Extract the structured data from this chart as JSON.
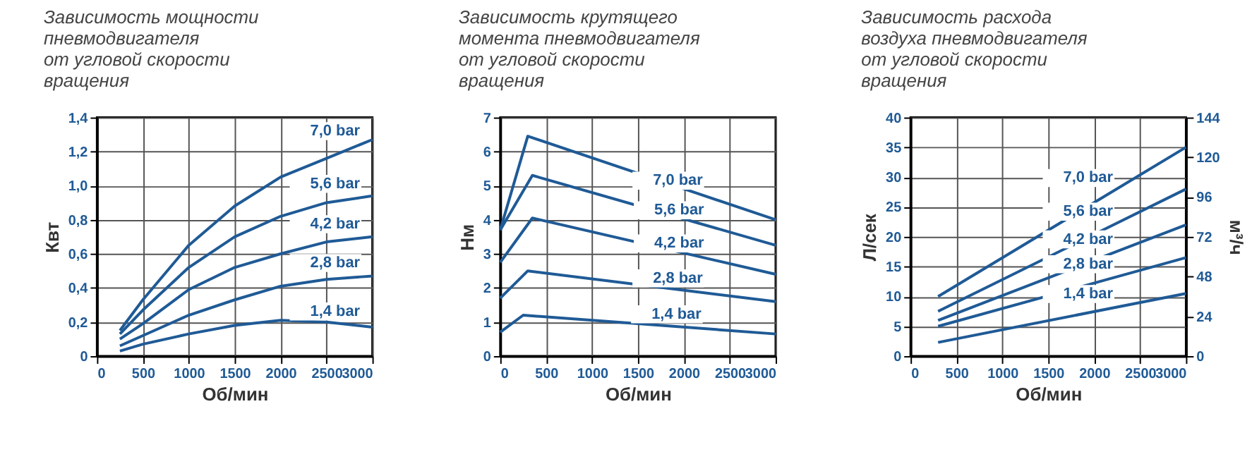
{
  "chart_data": [
    {
      "type": "line",
      "title": "Зависимость  мощности\nпневмодвигателя\nот  угловой  скорости\nвращения",
      "xlabel": "Об/мин",
      "ylabel": "Квт",
      "xlim": [
        0,
        3000
      ],
      "xticks": [
        0,
        500,
        1000,
        1500,
        2000,
        2500,
        3000
      ],
      "ylim": [
        0,
        1.4
      ],
      "yticks": [
        0,
        {
          "value": 0.2,
          "label": "0,2"
        },
        {
          "value": 0.4,
          "label": "0,4"
        },
        {
          "value": 0.6,
          "label": "0,6"
        },
        {
          "value": 0.8,
          "label": "0,8"
        },
        {
          "value": 1.0,
          "label": "1,0"
        },
        {
          "value": 1.2,
          "label": "1,2"
        },
        {
          "value": 1.4,
          "label": "1,4"
        }
      ],
      "grid": true,
      "legend": false,
      "x": [
        250,
        500,
        1000,
        1500,
        2000,
        2500,
        3000
      ],
      "series": [
        {
          "name": "7,0 bar",
          "color": "#1f5a96",
          "values": [
            0.15,
            0.33,
            0.65,
            0.88,
            1.05,
            1.16,
            1.27
          ]
        },
        {
          "name": "5,6 bar",
          "color": "#1f5a96",
          "values": [
            0.13,
            0.27,
            0.52,
            0.7,
            0.82,
            0.9,
            0.94
          ]
        },
        {
          "name": "4,2 bar",
          "color": "#1f5a96",
          "values": [
            0.1,
            0.19,
            0.39,
            0.52,
            0.6,
            0.67,
            0.7
          ]
        },
        {
          "name": "2,8 bar",
          "color": "#1f5a96",
          "values": [
            0.06,
            0.12,
            0.24,
            0.33,
            0.41,
            0.45,
            0.47
          ]
        },
        {
          "name": "1,4 bar",
          "color": "#1f5a96",
          "values": [
            0.03,
            0.07,
            0.13,
            0.18,
            0.21,
            0.2,
            0.17
          ]
        }
      ]
    },
    {
      "type": "line",
      "title": "Зависимость крутящего\nмомента  пневмодвигателя\nот  угловой  скорости\nвращения",
      "xlabel": "Об/мин",
      "ylabel": "Нм",
      "xlim": [
        0,
        3000
      ],
      "xticks": [
        0,
        500,
        1000,
        1500,
        2000,
        2500,
        3000
      ],
      "ylim": [
        0,
        7
      ],
      "yticks": [
        0,
        1,
        2,
        3,
        4,
        5,
        6,
        7
      ],
      "grid": true,
      "legend": false,
      "series": [
        {
          "name": "7,0 bar",
          "color": "#1f5a96",
          "x": [
            0,
            300,
            3000
          ],
          "values": [
            3.7,
            6.45,
            4.0
          ]
        },
        {
          "name": "5,6 bar",
          "color": "#1f5a96",
          "x": [
            0,
            350,
            3000
          ],
          "values": [
            3.7,
            5.3,
            3.25
          ]
        },
        {
          "name": "4,2 bar",
          "color": "#1f5a96",
          "x": [
            0,
            350,
            3000
          ],
          "values": [
            2.75,
            4.05,
            2.4
          ]
        },
        {
          "name": "2,8 bar",
          "color": "#1f5a96",
          "x": [
            0,
            300,
            3000
          ],
          "values": [
            1.7,
            2.5,
            1.6
          ]
        },
        {
          "name": "1,4 bar",
          "color": "#1f5a96",
          "x": [
            0,
            250,
            3000
          ],
          "values": [
            0.7,
            1.2,
            0.65
          ]
        }
      ]
    },
    {
      "type": "line",
      "title": "Зависимость  расхода\nвоздуха  пневмодвигателя\nот  угловой  скорости\nвращения",
      "xlabel": "Об/мин",
      "ylabel": "Л/сек",
      "y2label": "м³/ч",
      "xlim": [
        0,
        3000
      ],
      "xticks": [
        0,
        500,
        1000,
        1500,
        2000,
        2500,
        3000
      ],
      "ylim": [
        0,
        40
      ],
      "yticks": [
        0,
        5,
        10,
        15,
        20,
        25,
        30,
        35,
        40
      ],
      "y2lim": [
        0,
        144
      ],
      "y2ticks": [
        0,
        24,
        48,
        72,
        96,
        120,
        144
      ],
      "grid": true,
      "legend": false,
      "x": [
        300,
        3000
      ],
      "series": [
        {
          "name": "7,0 bar",
          "color": "#1f5a96",
          "values": [
            10,
            35
          ]
        },
        {
          "name": "5,6 bar",
          "color": "#1f5a96",
          "values": [
            7.5,
            28
          ]
        },
        {
          "name": "4,2 bar",
          "color": "#1f5a96",
          "values": [
            6,
            22
          ]
        },
        {
          "name": "2,8 bar",
          "color": "#1f5a96",
          "values": [
            5,
            16.5
          ]
        },
        {
          "name": "1,4 bar",
          "color": "#1f5a96",
          "values": [
            2.3,
            10.5
          ]
        }
      ]
    }
  ]
}
